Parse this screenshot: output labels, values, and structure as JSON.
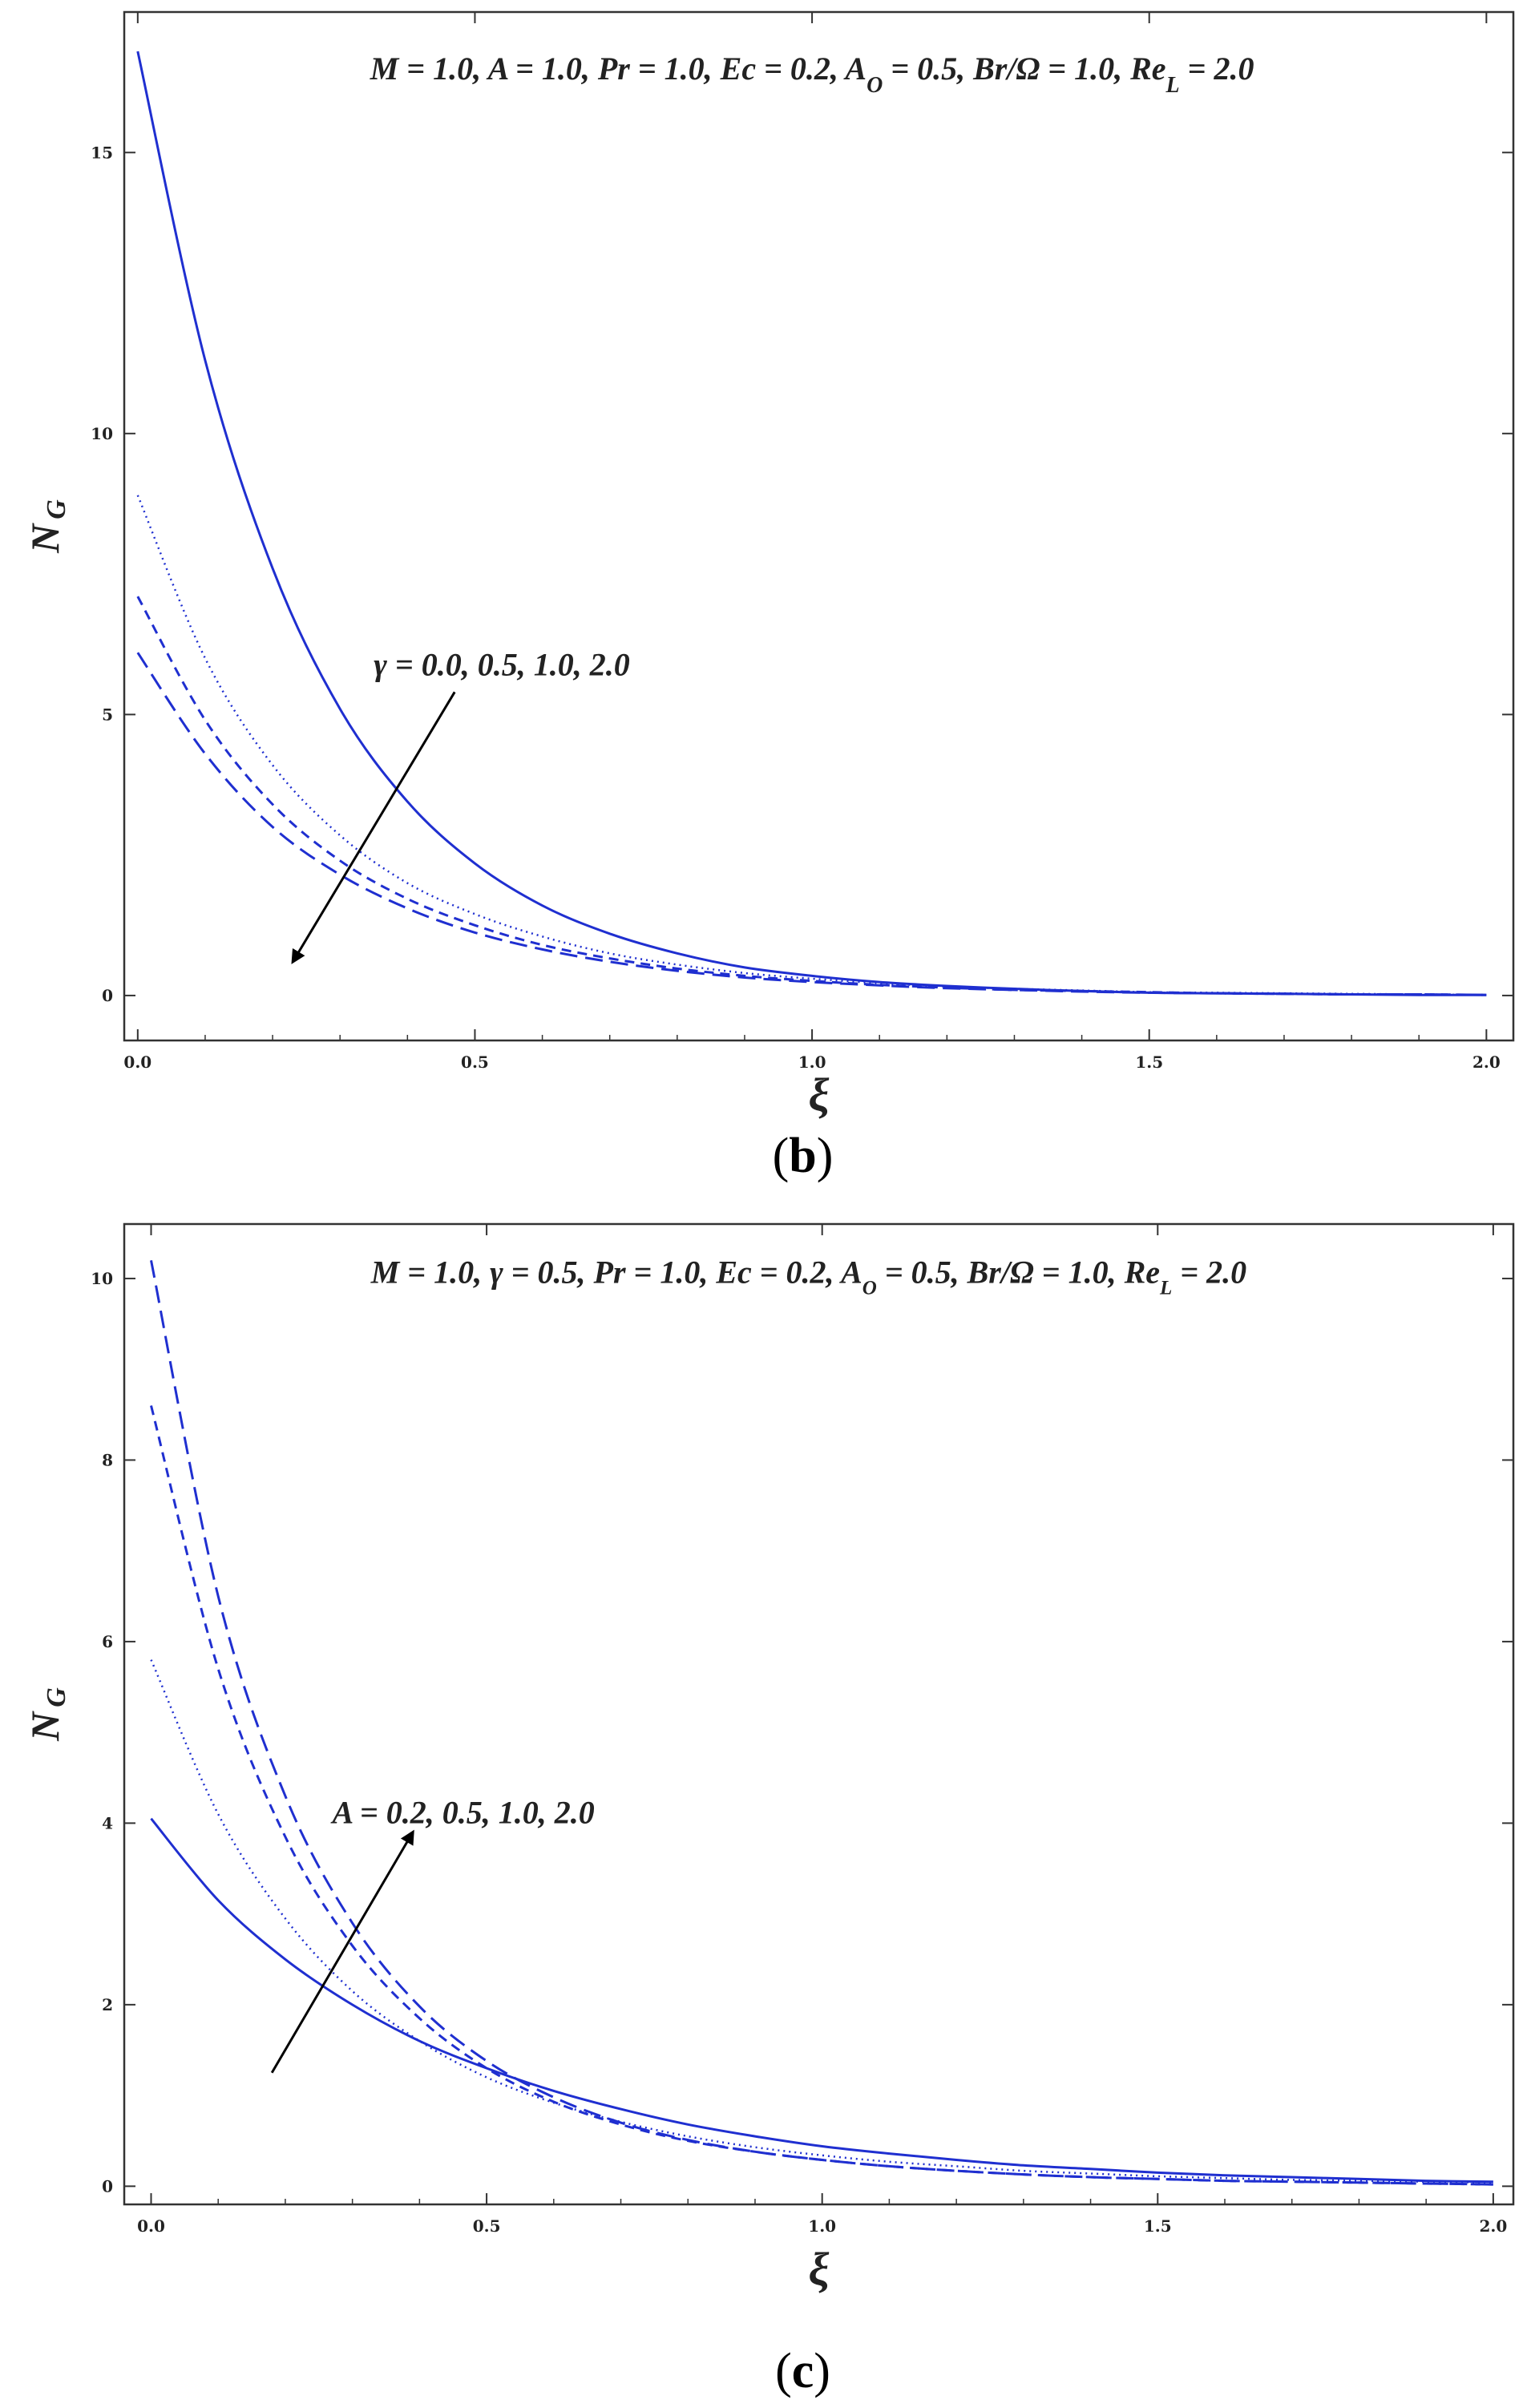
{
  "colors": {
    "curve": "#1f2fd0",
    "frame": "#333333",
    "arrow": "#000000"
  },
  "chart_data": [
    {
      "type": "line",
      "panel_label": "b",
      "annotation_parts": [
        {
          "t": "M = 1.0, A = 1.0, Pr = 1.0, Ec = 0.2, A"
        },
        {
          "t": "O",
          "sub": true
        },
        {
          "t": " = 0.5, Br/Ω = 1.0, Re"
        },
        {
          "t": "L",
          "sub": true
        },
        {
          "t": " = 2.0"
        }
      ],
      "arrow_label": "γ = 0.0, 0.5, 1.0, 2.0",
      "xlabel": "ξ",
      "ylabel_main": "N",
      "ylabel_sub": "G",
      "xlim": [
        -0.02,
        2.04
      ],
      "ylim": [
        -0.8,
        17.5
      ],
      "xticks": [
        {
          "v": 0.0,
          "label": "0.0"
        },
        {
          "v": 0.5,
          "label": "0.5"
        },
        {
          "v": 1.0,
          "label": "1.0"
        },
        {
          "v": 1.5,
          "label": "1.5"
        },
        {
          "v": 2.0,
          "label": "2.0"
        }
      ],
      "yticks": [
        {
          "v": 0,
          "label": "0"
        },
        {
          "v": 5,
          "label": "5"
        },
        {
          "v": 10,
          "label": "10"
        },
        {
          "v": 15,
          "label": "15"
        }
      ],
      "x": [
        0.0,
        0.1,
        0.2,
        0.3,
        0.4,
        0.5,
        0.6,
        0.7,
        0.8,
        0.9,
        1.0,
        1.1,
        1.2,
        1.3,
        1.4,
        1.5,
        1.6,
        1.7,
        1.8,
        1.9,
        2.0
      ],
      "series": [
        {
          "style": "solid",
          "values": [
            16.8,
            11.3,
            7.6,
            5.1,
            3.45,
            2.35,
            1.6,
            1.1,
            0.75,
            0.5,
            0.35,
            0.24,
            0.17,
            0.12,
            0.08,
            0.05,
            0.04,
            0.03,
            0.02,
            0.01,
            0.01
          ]
        },
        {
          "style": "dotted",
          "values": [
            8.9,
            6.0,
            4.1,
            2.85,
            2.0,
            1.45,
            1.05,
            0.75,
            0.55,
            0.4,
            0.3,
            0.22,
            0.16,
            0.12,
            0.09,
            0.06,
            0.05,
            0.04,
            0.03,
            0.02,
            0.01
          ]
        },
        {
          "style": "dashed",
          "values": [
            7.1,
            4.9,
            3.4,
            2.4,
            1.72,
            1.25,
            0.9,
            0.66,
            0.48,
            0.35,
            0.26,
            0.19,
            0.14,
            0.1,
            0.08,
            0.06,
            0.04,
            0.03,
            0.02,
            0.02,
            0.01
          ]
        },
        {
          "style": "longdash",
          "values": [
            6.1,
            4.3,
            3.0,
            2.15,
            1.55,
            1.12,
            0.82,
            0.6,
            0.44,
            0.32,
            0.24,
            0.18,
            0.13,
            0.1,
            0.07,
            0.05,
            0.04,
            0.03,
            0.02,
            0.02,
            0.01
          ]
        }
      ],
      "arrow": {
        "direction": "down-left",
        "from": [
          0.47,
          5.4
        ],
        "to": [
          0.23,
          0.6
        ]
      },
      "arrow_label_pos": [
        0.35,
        5.7
      ],
      "annotation_pos": [
        1.0,
        16.3
      ]
    },
    {
      "type": "line",
      "panel_label": "c",
      "annotation_parts": [
        {
          "t": "M = 1.0, γ = 0.5, Pr = 1.0, Ec = 0.2, A"
        },
        {
          "t": "O",
          "sub": true
        },
        {
          "t": " = 0.5, Br/Ω = 1.0, Re"
        },
        {
          "t": "L",
          "sub": true
        },
        {
          "t": " = 2.0"
        }
      ],
      "arrow_label": "A = 0.2, 0.5, 1.0, 2.0",
      "xlabel": "ξ",
      "ylabel_main": "N",
      "ylabel_sub": "G",
      "xlim": [
        -0.04,
        2.03
      ],
      "ylim": [
        -0.2,
        10.6
      ],
      "xticks": [
        {
          "v": 0.0,
          "label": "0.0"
        },
        {
          "v": 0.5,
          "label": "0.5"
        },
        {
          "v": 1.0,
          "label": "1.0"
        },
        {
          "v": 1.5,
          "label": "1.5"
        },
        {
          "v": 2.0,
          "label": "2.0"
        }
      ],
      "yticks": [
        {
          "v": 0,
          "label": "0"
        },
        {
          "v": 2,
          "label": "2"
        },
        {
          "v": 4,
          "label": "4"
        },
        {
          "v": 6,
          "label": "6"
        },
        {
          "v": 8,
          "label": "8"
        },
        {
          "v": 10,
          "label": "10"
        }
      ],
      "x": [
        0.0,
        0.1,
        0.2,
        0.3,
        0.4,
        0.5,
        0.6,
        0.7,
        0.8,
        0.9,
        1.0,
        1.1,
        1.2,
        1.3,
        1.4,
        1.5,
        1.6,
        1.7,
        1.8,
        1.9,
        2.0
      ],
      "series": [
        {
          "style": "solid",
          "values": [
            4.05,
            3.15,
            2.5,
            2.0,
            1.6,
            1.3,
            1.05,
            0.85,
            0.68,
            0.55,
            0.44,
            0.36,
            0.29,
            0.23,
            0.19,
            0.15,
            0.12,
            0.1,
            0.08,
            0.06,
            0.05
          ]
        },
        {
          "style": "dotted",
          "values": [
            5.8,
            4.1,
            2.95,
            2.15,
            1.6,
            1.2,
            0.92,
            0.71,
            0.55,
            0.43,
            0.34,
            0.27,
            0.22,
            0.17,
            0.14,
            0.11,
            0.09,
            0.07,
            0.06,
            0.05,
            0.04
          ]
        },
        {
          "style": "dashed",
          "values": [
            8.6,
            5.7,
            3.85,
            2.65,
            1.85,
            1.3,
            0.93,
            0.68,
            0.5,
            0.38,
            0.29,
            0.22,
            0.17,
            0.13,
            0.1,
            0.08,
            0.06,
            0.05,
            0.04,
            0.03,
            0.02
          ]
        },
        {
          "style": "longdash",
          "values": [
            10.2,
            6.5,
            4.3,
            2.9,
            1.98,
            1.38,
            0.98,
            0.7,
            0.51,
            0.38,
            0.29,
            0.22,
            0.17,
            0.13,
            0.1,
            0.08,
            0.06,
            0.05,
            0.04,
            0.03,
            0.02
          ]
        }
      ],
      "arrow": {
        "direction": "up-right",
        "from": [
          0.18,
          1.25
        ],
        "to": [
          0.39,
          3.9
        ]
      },
      "arrow_label_pos": [
        0.27,
        4.0
      ],
      "annotation_pos": [
        0.98,
        9.95
      ]
    }
  ]
}
